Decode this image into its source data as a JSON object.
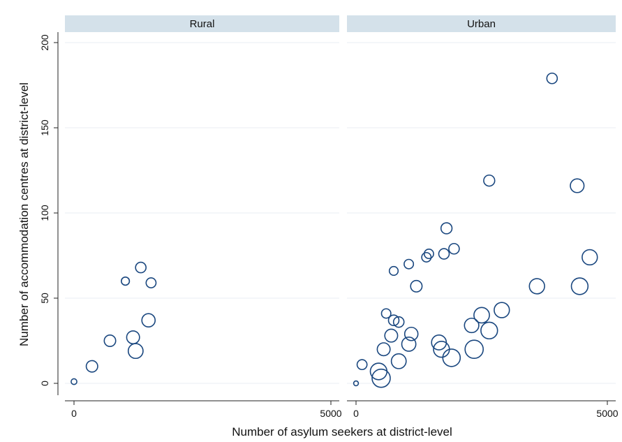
{
  "chart_data": {
    "type": "scatter",
    "xlabel": "Number of asylum seekers at district-level",
    "ylabel": "Number of accommodation centres at district-level",
    "xlim": [
      0,
      5000
    ],
    "ylim": [
      0,
      200
    ],
    "x_ticks": [
      0,
      5000
    ],
    "y_ticks": [
      0,
      50,
      100,
      150,
      200
    ],
    "grid": "horizontal",
    "marker": "hollow-circle",
    "marker_color": "#1a477f",
    "strip_color": "#d4e1ea",
    "grid_color": "#e8eef3",
    "panels": [
      {
        "name": "Rural",
        "points": [
          {
            "x": 0,
            "y": 1,
            "size": 0.3
          },
          {
            "x": 350,
            "y": 10,
            "size": 1.2
          },
          {
            "x": 700,
            "y": 25,
            "size": 1.2
          },
          {
            "x": 1000,
            "y": 60,
            "size": 0.6
          },
          {
            "x": 1150,
            "y": 27,
            "size": 1.5
          },
          {
            "x": 1200,
            "y": 19,
            "size": 2.0
          },
          {
            "x": 1300,
            "y": 68,
            "size": 1.0
          },
          {
            "x": 1450,
            "y": 37,
            "size": 1.6
          },
          {
            "x": 1500,
            "y": 59,
            "size": 0.9
          }
        ]
      },
      {
        "name": "Urban",
        "points": [
          {
            "x": 0,
            "y": 0,
            "size": 0.2
          },
          {
            "x": 120,
            "y": 11,
            "size": 0.9
          },
          {
            "x": 450,
            "y": 7,
            "size": 2.5
          },
          {
            "x": 500,
            "y": 3,
            "size": 3.0
          },
          {
            "x": 550,
            "y": 20,
            "size": 1.5
          },
          {
            "x": 600,
            "y": 41,
            "size": 0.8
          },
          {
            "x": 700,
            "y": 28,
            "size": 1.5
          },
          {
            "x": 750,
            "y": 37,
            "size": 1.0
          },
          {
            "x": 750,
            "y": 66,
            "size": 0.7
          },
          {
            "x": 850,
            "y": 36,
            "size": 1.0
          },
          {
            "x": 850,
            "y": 13,
            "size": 2.0
          },
          {
            "x": 1050,
            "y": 23,
            "size": 1.8
          },
          {
            "x": 1050,
            "y": 70,
            "size": 0.8
          },
          {
            "x": 1100,
            "y": 29,
            "size": 1.6
          },
          {
            "x": 1200,
            "y": 57,
            "size": 1.2
          },
          {
            "x": 1400,
            "y": 74,
            "size": 0.8
          },
          {
            "x": 1450,
            "y": 76,
            "size": 0.8
          },
          {
            "x": 1650,
            "y": 24,
            "size": 2.0
          },
          {
            "x": 1700,
            "y": 20,
            "size": 2.3
          },
          {
            "x": 1750,
            "y": 76,
            "size": 1.0
          },
          {
            "x": 1800,
            "y": 91,
            "size": 1.1
          },
          {
            "x": 1900,
            "y": 15,
            "size": 2.8
          },
          {
            "x": 1950,
            "y": 79,
            "size": 1.0
          },
          {
            "x": 2300,
            "y": 34,
            "size": 1.9
          },
          {
            "x": 2350,
            "y": 20,
            "size": 3.0
          },
          {
            "x": 2500,
            "y": 40,
            "size": 2.2
          },
          {
            "x": 2650,
            "y": 119,
            "size": 1.1
          },
          {
            "x": 2650,
            "y": 31,
            "size": 2.5
          },
          {
            "x": 2900,
            "y": 43,
            "size": 2.1
          },
          {
            "x": 3600,
            "y": 57,
            "size": 2.1
          },
          {
            "x": 3900,
            "y": 179,
            "size": 1.0
          },
          {
            "x": 4400,
            "y": 116,
            "size": 1.7
          },
          {
            "x": 4450,
            "y": 57,
            "size": 2.5
          },
          {
            "x": 4650,
            "y": 74,
            "size": 2.1
          }
        ]
      }
    ]
  }
}
